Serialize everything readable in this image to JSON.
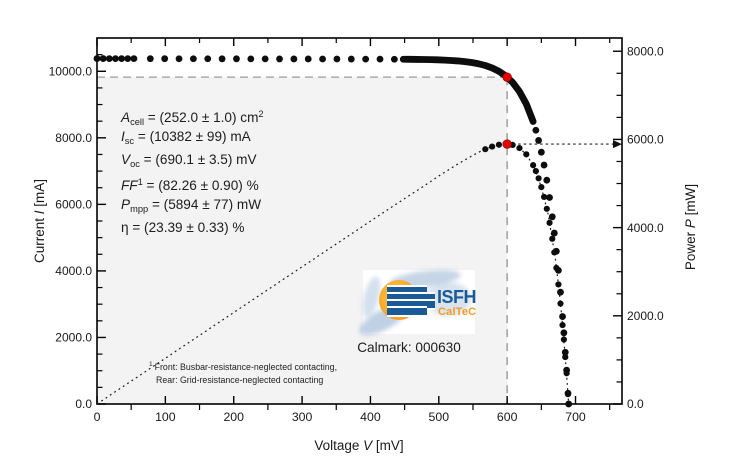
{
  "chart_data": {
    "type": "scatter",
    "title": "",
    "x_axis": {
      "label": "Voltage V [mV]",
      "label_main": "Voltage ",
      "label_var": "V",
      "label_unit": " [mV]",
      "range": [
        0,
        768
      ],
      "major_ticks": [
        0,
        100,
        200,
        300,
        400,
        500,
        600,
        700
      ],
      "minor_step": 50,
      "grid": false
    },
    "y_left_axis": {
      "label": "Current I [mA]",
      "label_main": "Current ",
      "label_var": "I",
      "label_unit": " [mA]",
      "range": [
        0,
        11000
      ],
      "major_ticks": [
        0,
        2000,
        4000,
        6000,
        8000,
        10000
      ],
      "minor_step": 500,
      "tick_decimals": 1
    },
    "y_right_axis": {
      "label": "Power P [mW]",
      "label_main": "Power ",
      "label_var": "P",
      "label_unit": " [mW]",
      "range": [
        0,
        8300
      ],
      "major_ticks": [
        0,
        2000,
        4000,
        6000,
        8000
      ],
      "minor_step": 500,
      "tick_decimals": 1
    },
    "iv_dots": {
      "v": [
        0,
        9,
        18,
        27,
        36,
        45,
        54,
        78,
        99,
        120,
        141,
        162,
        183,
        204,
        225,
        246,
        267,
        288,
        309,
        330,
        351,
        372,
        393,
        414,
        435,
        642,
        646,
        650,
        654,
        658,
        662,
        666,
        669,
        672,
        675,
        678,
        681,
        683,
        685,
        687,
        689,
        690
      ],
      "i": [
        10382,
        10382,
        10381,
        10381,
        10381,
        10380,
        10380,
        10379,
        10378,
        10377,
        10376,
        10376,
        10375,
        10374,
        10373,
        10372,
        10371,
        10370,
        10370,
        10369,
        10368,
        10367,
        10366,
        10365,
        10362,
        8227,
        7922,
        7568,
        7181,
        6727,
        6206,
        5626,
        5137,
        4591,
        4016,
        3360,
        2628,
        2140,
        1554,
        1016,
        323,
        0
      ]
    },
    "iv_band": {
      "v": [
        448,
        458,
        468,
        478,
        488,
        498,
        508,
        518,
        528,
        538,
        548,
        558,
        568,
        578,
        588,
        598,
        608,
        618,
        628,
        638
      ],
      "i": [
        10361,
        10359,
        10356,
        10353,
        10349,
        10344,
        10336,
        10325,
        10311,
        10291,
        10264,
        10226,
        10173,
        10101,
        10000,
        9859,
        9664,
        9392,
        9015,
        8491
      ]
    },
    "power_line": {
      "v": [
        0,
        25,
        50,
        75,
        100,
        125,
        150,
        175,
        200,
        225,
        250,
        275,
        300,
        325,
        350,
        375,
        400,
        425,
        450,
        475,
        500,
        525,
        550,
        560,
        570,
        580,
        590,
        600,
        610,
        620,
        630,
        640,
        650,
        660,
        670,
        675,
        680,
        685,
        688,
        690
      ],
      "p": [
        0,
        260,
        519,
        778,
        1038,
        1297,
        1556,
        1816,
        2075,
        2334,
        2593,
        2852,
        3111,
        3370,
        3629,
        3887,
        4146,
        4403,
        4659,
        4910,
        5171,
        5416,
        5641,
        5721,
        5791,
        5848,
        5884,
        5894,
        5864,
        5779,
        5618,
        5345,
        4919,
        4299,
        3354,
        2711,
        1971,
        1064,
        436,
        0
      ]
    },
    "power_dots": {
      "v": [
        568,
        578,
        588,
        598,
        608,
        618,
        628,
        638,
        642,
        646,
        650,
        654,
        658,
        662,
        666,
        669,
        672,
        675,
        678,
        681,
        683,
        685,
        687,
        689,
        690
      ],
      "p": [
        5778,
        5838,
        5880,
        5896,
        5876,
        5804,
        5661,
        5417,
        5282,
        5118,
        4919,
        4696,
        4426,
        4108,
        3747,
        3437,
        3085,
        2711,
        2278,
        1790,
        1462,
        1064,
        698,
        223,
        0
      ]
    },
    "mpp": {
      "v_mv": 600,
      "i_ma": 9823,
      "p_mw": 5894
    },
    "colors": {
      "dots": "#0d0d0d",
      "mpp_marker": "#e60000",
      "mpp_marker_edge": "#8f0000",
      "guide_gray": "#9b9b9b",
      "shading": "#f3f3f3",
      "frame": "#000000",
      "text": "#1a1a1a"
    }
  },
  "results_box": {
    "lines": [
      {
        "segs": [
          {
            "t": "A",
            "s": "i"
          },
          {
            "t": "cell",
            "s": "sub"
          },
          {
            "t": " = (252.0 ± 1.0) cm",
            "s": ""
          },
          {
            "t": "2",
            "s": "sup"
          }
        ]
      },
      {
        "segs": [
          {
            "t": "I",
            "s": "i"
          },
          {
            "t": "sc",
            "s": "sub"
          },
          {
            "t": " = (10382 ± 99) mA",
            "s": ""
          }
        ]
      },
      {
        "segs": [
          {
            "t": "V",
            "s": "i"
          },
          {
            "t": "oc",
            "s": "sub"
          },
          {
            "t": " = (690.1 ± 3.5) mV",
            "s": ""
          }
        ]
      },
      {
        "segs": [
          {
            "t": "FF",
            "s": "i"
          },
          {
            "t": "1",
            "s": "sup"
          },
          {
            "t": " = (82.26 ± 0.90) %",
            "s": ""
          }
        ]
      },
      {
        "segs": [
          {
            "t": "P",
            "s": "i"
          },
          {
            "t": "mpp",
            "s": "sub"
          },
          {
            "t": " = (5894 ± 77) mW",
            "s": ""
          }
        ]
      },
      {
        "segs": [
          {
            "t": "η",
            "s": ""
          },
          {
            "t": " = (23.39 ± 0.33) %",
            "s": ""
          }
        ]
      }
    ]
  },
  "logo": {
    "org": "ISFH",
    "unit": "CalTeC"
  },
  "calmark": {
    "label": "Calmark: 000630"
  },
  "footnote": {
    "marker": "1",
    "line1": "Front: Busbar-resistance-neglected contacting,",
    "line2": "Rear: Grid-resistance-neglected contacting"
  }
}
